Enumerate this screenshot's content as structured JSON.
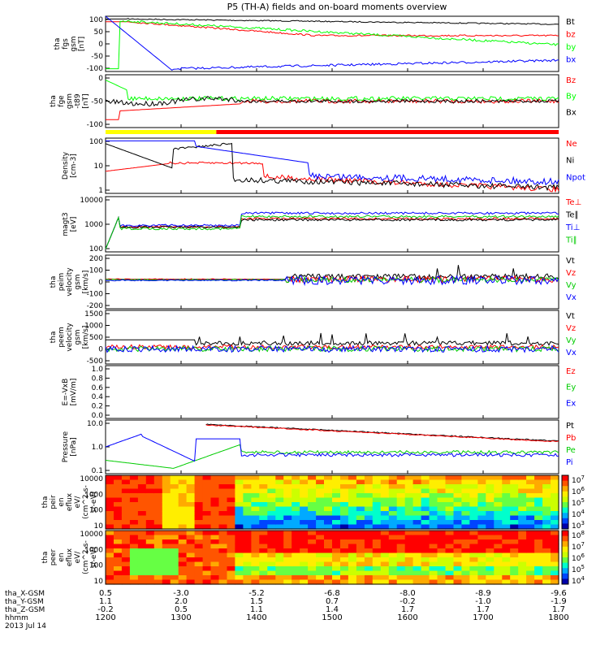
{
  "chart_data": {
    "title": "P5 (TH-A) fields and on-board moments overview",
    "date": "2013 Jul 14",
    "time_ticks": [
      "1200",
      "1300",
      "1400",
      "1500",
      "1600",
      "1700",
      "1800"
    ],
    "orbit_rows": [
      {
        "label": "tha_X-GSM",
        "values": [
          "0.5",
          "-3.0",
          "-5.2",
          "-6.8",
          "-8.0",
          "-8.9",
          "-9.6"
        ]
      },
      {
        "label": "tha_Y-GSM",
        "values": [
          "1.1",
          "2.0",
          "1.5",
          "0.7",
          "-0.2",
          "-1.0",
          "-1.9"
        ]
      },
      {
        "label": "tha_Z-GSM",
        "values": [
          "-0.2",
          "0.5",
          "1.1",
          "1.4",
          "1.7",
          "1.7",
          "1.7"
        ]
      },
      {
        "label": "hhmm",
        "values": []
      }
    ],
    "mode_bar": {
      "segments": [
        {
          "color": "#ffff00",
          "start": "1200",
          "end": "1328"
        },
        {
          "color": "#ff0000",
          "start": "1328",
          "end": "1800"
        }
      ]
    },
    "panels": [
      {
        "id": "fgs",
        "type": "line",
        "ylabel": [
          "tha",
          "fgs",
          "gsm",
          "[nT]"
        ],
        "ylim": [
          -100,
          100
        ],
        "ticks": [
          "100",
          "50",
          "0",
          "-50",
          "-100"
        ],
        "series": [
          {
            "name": "Bt",
            "color": "#000000"
          },
          {
            "name": "bz",
            "color": "#ff0000"
          },
          {
            "name": "by",
            "color": "#00ff00"
          },
          {
            "name": "bx",
            "color": "#0000ff"
          }
        ]
      },
      {
        "id": "fge",
        "type": "line",
        "ylabel": [
          "tha",
          "fge",
          "gsm",
          "-t89",
          "[nT]"
        ],
        "ylim": [
          -150,
          50
        ],
        "ticks": [
          "0",
          "-50",
          "-100"
        ],
        "series": [
          {
            "name": "Bz",
            "color": "#ff0000"
          },
          {
            "name": "By",
            "color": "#00ff00"
          },
          {
            "name": "Bx",
            "color": "#000000"
          }
        ]
      },
      {
        "id": "density",
        "type": "line",
        "log": true,
        "ylabel": [
          "Density",
          "[cm-3]"
        ],
        "ylim": [
          0.3,
          200
        ],
        "ticks": [
          "100",
          "10",
          "1"
        ],
        "series": [
          {
            "name": "Ne",
            "color": "#ff0000"
          },
          {
            "name": "Ni",
            "color": "#000000"
          },
          {
            "name": "Npot",
            "color": "#0000ff"
          }
        ]
      },
      {
        "id": "temp",
        "type": "line",
        "log": true,
        "ylabel": [
          "magt3",
          "[eV]"
        ],
        "ylim": [
          100,
          30000
        ],
        "ticks": [
          "10000",
          "1000",
          "100"
        ],
        "series": [
          {
            "name": "Te⊥",
            "color": "#ff0000"
          },
          {
            "name": "Te∥",
            "color": "#000000"
          },
          {
            "name": "Ti⊥",
            "color": "#0000ff"
          },
          {
            "name": "Ti∥",
            "color": "#00cc00"
          }
        ]
      },
      {
        "id": "peim",
        "type": "line",
        "ylabel": [
          "tha",
          "peim",
          "velocity",
          "gsm",
          "[km/s]"
        ],
        "ylim": [
          -200,
          250
        ],
        "ticks": [
          "200",
          "100",
          "0",
          "-100",
          "-200"
        ],
        "series": [
          {
            "name": "Vt",
            "color": "#000000"
          },
          {
            "name": "Vz",
            "color": "#ff0000"
          },
          {
            "name": "Vy",
            "color": "#00cc00"
          },
          {
            "name": "Vx",
            "color": "#0000ff"
          }
        ]
      },
      {
        "id": "peem",
        "type": "line",
        "ylabel": [
          "tha",
          "peem",
          "velocity",
          "gsm",
          "[km/s]"
        ],
        "ylim": [
          -700,
          1800
        ],
        "ticks": [
          "1500",
          "1000",
          "500",
          "0",
          "-500"
        ],
        "series": [
          {
            "name": "Vt",
            "color": "#000000"
          },
          {
            "name": "Vz",
            "color": "#ff0000"
          },
          {
            "name": "Vy",
            "color": "#00cc00"
          },
          {
            "name": "Vx",
            "color": "#0000ff"
          }
        ]
      },
      {
        "id": "efield",
        "type": "line",
        "ylabel": [
          "E=-VxB",
          "[mV/m]"
        ],
        "ylim": [
          0,
          1
        ],
        "ticks": [
          "1.0",
          "0.8",
          "0.6",
          "0.4",
          "0.2",
          "0.0"
        ],
        "series": [
          {
            "name": "Ez",
            "color": "#ff0000"
          },
          {
            "name": "Ey",
            "color": "#00cc00"
          },
          {
            "name": "Ex",
            "color": "#0000ff"
          }
        ]
      },
      {
        "id": "pressure",
        "type": "line",
        "log": true,
        "ylabel": [
          "Pressure",
          "[nPa]"
        ],
        "ylim": [
          0.03,
          20
        ],
        "ticks": [
          "10.0",
          "1.0",
          "0.1"
        ],
        "series": [
          {
            "name": "Pt",
            "color": "#000000"
          },
          {
            "name": "Pb",
            "color": "#ff0000"
          },
          {
            "name": "Pe",
            "color": "#00cc00"
          },
          {
            "name": "Pi",
            "color": "#0000ff"
          }
        ]
      },
      {
        "id": "peir",
        "type": "heatmap",
        "ylabel": [
          "tha",
          "peir",
          "en",
          "eflux",
          "eV/",
          "(cm^2-s-",
          "sr-eV)"
        ],
        "ticks": [
          "10000",
          "1000",
          "100",
          "10"
        ],
        "colorbar": [
          "10^7",
          "10^6",
          "10^5",
          "10^4",
          "10^3"
        ]
      },
      {
        "id": "peer",
        "type": "heatmap",
        "ylabel": [
          "tha",
          "peer",
          "en",
          "eflux",
          "eV/",
          "(cm^2-s-",
          "sr-eV)"
        ],
        "ticks": [
          "10000",
          "1000",
          "100",
          "10"
        ],
        "colorbar": [
          "10^8",
          "10^7",
          "10^6",
          "10^5",
          "10^4"
        ]
      }
    ]
  }
}
